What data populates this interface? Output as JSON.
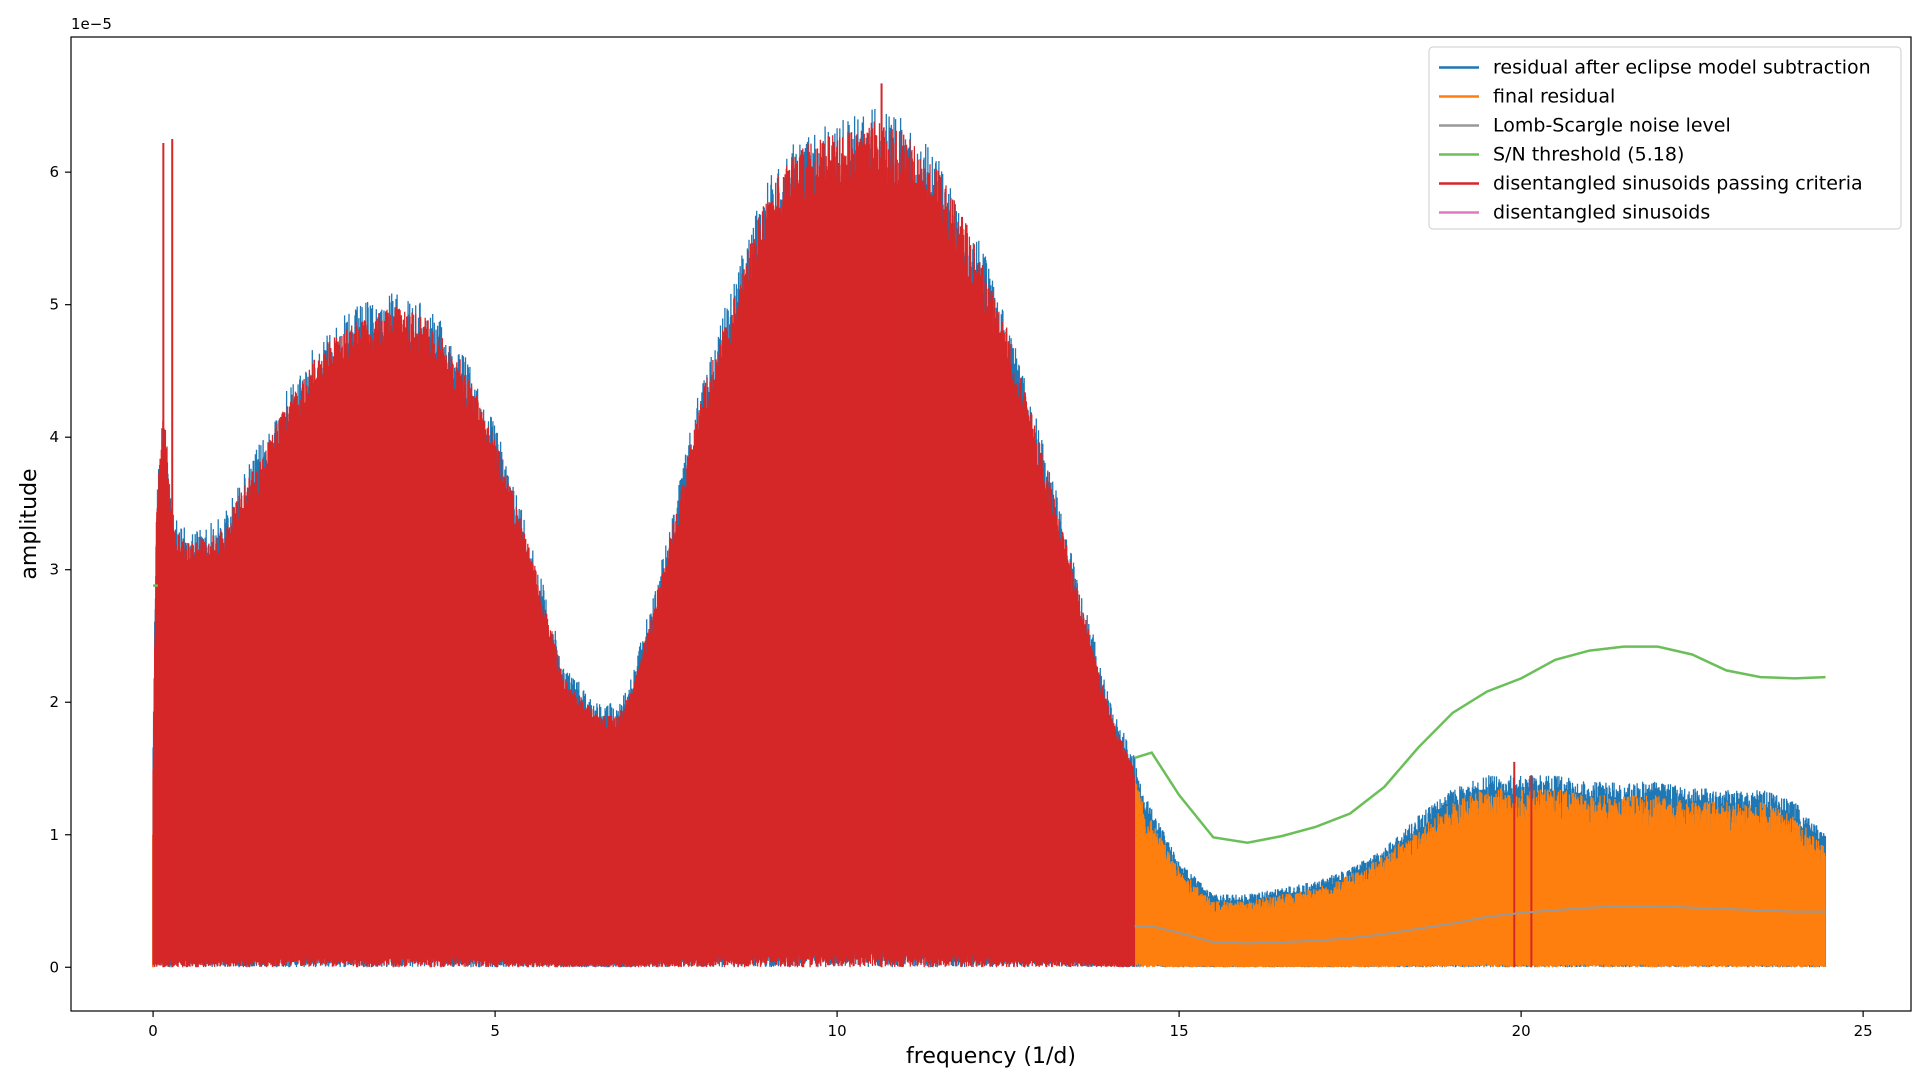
{
  "chart_data": {
    "type": "line",
    "xlabel": "frequency (1/d)",
    "ylabel": "amplitude",
    "y_offset_label": "1e−5",
    "y_scale_factor": 1e-05,
    "xlim": [
      -1.2,
      25.7
    ],
    "ylim": [
      -0.33,
      7.02
    ],
    "x_ticks": [
      0,
      5,
      10,
      15,
      20,
      25
    ],
    "y_ticks": [
      0,
      1,
      2,
      3,
      4,
      5,
      6
    ],
    "legend_position": "top-right",
    "grid": false,
    "x_cutoff_passing": 14.35,
    "x_max_data": 24.45,
    "series": [
      {
        "name": "residual after eclipse model subtraction",
        "color": "#1f77b4",
        "kind": "periodogram-envelope",
        "x": [
          0,
          0.05,
          0.15,
          0.3,
          0.5,
          1,
          1.5,
          2,
          2.5,
          3,
          3.5,
          4,
          4.5,
          5,
          5.5,
          6,
          6.5,
          6.8,
          7,
          7.5,
          8,
          8.5,
          9,
          9.5,
          10,
          10.5,
          11,
          11.5,
          12,
          12.5,
          13,
          13.5,
          14,
          14.35,
          14.5,
          15,
          15.5,
          16,
          16.5,
          17,
          17.5,
          18,
          18.5,
          19,
          19.5,
          20,
          20.5,
          21,
          21.5,
          22,
          22.5,
          23,
          23.5,
          24,
          24.45
        ],
        "y": [
          1.8,
          3.6,
          4.3,
          3.4,
          3.3,
          3.4,
          3.9,
          4.4,
          4.8,
          5.0,
          5.1,
          5.0,
          4.7,
          4.1,
          3.3,
          2.3,
          2.0,
          2.0,
          2.2,
          3.2,
          4.4,
          5.2,
          6.0,
          6.3,
          6.4,
          6.5,
          6.4,
          6.1,
          5.6,
          4.9,
          4.0,
          3.0,
          2.0,
          1.6,
          1.3,
          0.8,
          0.55,
          0.55,
          0.6,
          0.65,
          0.75,
          0.9,
          1.15,
          1.35,
          1.45,
          1.45,
          1.45,
          1.4,
          1.4,
          1.4,
          1.35,
          1.35,
          1.35,
          1.25,
          1.0
        ]
      },
      {
        "name": "final residual",
        "color": "#ff7f0e",
        "kind": "periodogram-envelope",
        "x": [
          14.35,
          14.5,
          15,
          15.5,
          16,
          16.5,
          17,
          17.5,
          18,
          18.5,
          19,
          19.5,
          20,
          20.5,
          21,
          21.5,
          22,
          22.5,
          23,
          23.5,
          24,
          24.45
        ],
        "y": [
          1.5,
          1.2,
          0.75,
          0.5,
          0.5,
          0.55,
          0.6,
          0.7,
          0.85,
          1.05,
          1.25,
          1.35,
          1.35,
          1.35,
          1.3,
          1.3,
          1.3,
          1.25,
          1.25,
          1.25,
          1.15,
          0.9
        ]
      },
      {
        "name": "Lomb-Scargle noise level",
        "color": "#999999",
        "x": [
          14.35,
          14.6,
          15,
          15.5,
          16,
          16.5,
          17,
          17.5,
          18,
          18.5,
          19,
          19.5,
          20,
          20.5,
          21,
          21.5,
          22,
          22.5,
          23,
          23.5,
          24,
          24.45
        ],
        "y": [
          0.31,
          0.31,
          0.26,
          0.19,
          0.18,
          0.19,
          0.2,
          0.22,
          0.25,
          0.29,
          0.33,
          0.38,
          0.41,
          0.43,
          0.45,
          0.46,
          0.46,
          0.45,
          0.44,
          0.43,
          0.42,
          0.42
        ]
      },
      {
        "name": "S/N threshold (5.18)",
        "color": "#6bbf59",
        "x": [
          0,
          0.07,
          14.35,
          14.6,
          15,
          15.5,
          16,
          16.5,
          17,
          17.5,
          18,
          18.5,
          19,
          19.5,
          20,
          20.5,
          21,
          21.5,
          22,
          22.5,
          23,
          23.5,
          24,
          24.45
        ],
        "y": [
          2.88,
          2.88,
          1.58,
          1.62,
          1.3,
          0.98,
          0.94,
          0.99,
          1.06,
          1.16,
          1.36,
          1.66,
          1.92,
          2.08,
          2.18,
          2.32,
          2.39,
          2.42,
          2.42,
          2.36,
          2.24,
          2.19,
          2.18,
          2.19
        ]
      },
      {
        "name": "disentangled sinusoids passing criteria",
        "color": "#d62728",
        "kind": "periodogram-envelope",
        "x": [
          0,
          0.05,
          0.15,
          0.3,
          0.5,
          1,
          1.5,
          2,
          2.5,
          3,
          3.5,
          4,
          4.5,
          5,
          5.5,
          6,
          6.5,
          6.8,
          7,
          7.5,
          8,
          8.5,
          9,
          9.5,
          10,
          10.5,
          11,
          11.5,
          12,
          12.5,
          13,
          13.5,
          14,
          14.35
        ],
        "y": [
          1.5,
          3.5,
          4.3,
          3.3,
          3.2,
          3.3,
          3.8,
          4.3,
          4.7,
          4.9,
          5.0,
          4.9,
          4.6,
          4.0,
          3.2,
          2.2,
          1.9,
          1.9,
          2.1,
          3.1,
          4.3,
          5.1,
          5.9,
          6.2,
          6.3,
          6.4,
          6.3,
          6.0,
          5.5,
          4.8,
          3.9,
          2.9,
          1.9,
          1.5
        ],
        "spikes": [
          {
            "x": 0.15,
            "y": 6.22
          },
          {
            "x": 0.28,
            "y": 6.25
          },
          {
            "x": 19.9,
            "y": 1.55
          },
          {
            "x": 20.15,
            "y": 1.45
          },
          {
            "x": 10.65,
            "y": 6.67
          }
        ]
      },
      {
        "name": "disentangled sinusoids",
        "color": "#e377c2",
        "x": [],
        "y": []
      }
    ]
  }
}
